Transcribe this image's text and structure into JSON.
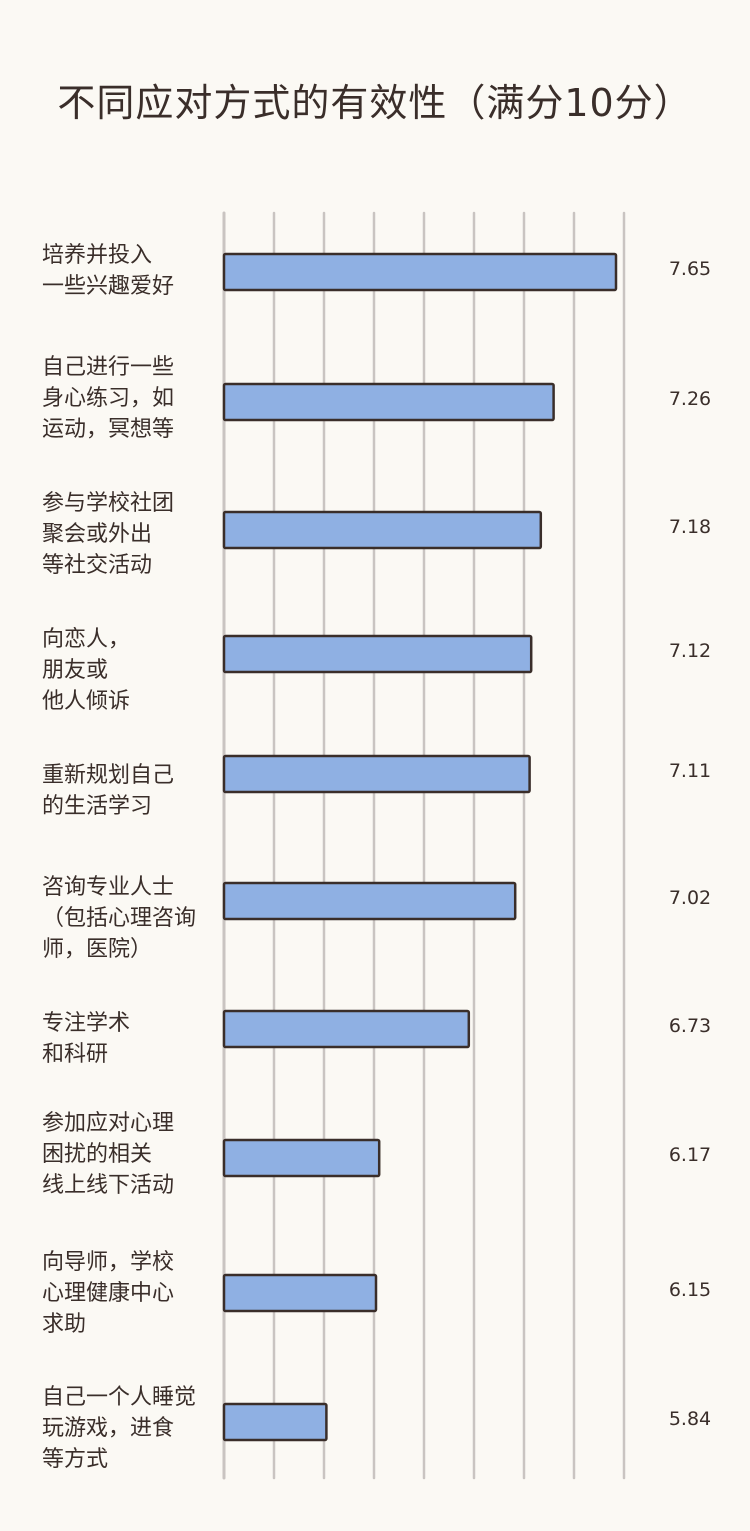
{
  "chart_data": {
    "type": "bar",
    "orientation": "horizontal",
    "title": "不同应对方式的有效性（满分10分）",
    "xlabel": "",
    "ylabel": "",
    "grid": true,
    "categories": [
      "培养并投入\n一些兴趣爱好",
      "自己进行一些\n身心练习，如\n运动，冥想等",
      "参与学校社团\n聚会或外出\n等社交活动",
      "向恋人，\n朋友或\n他人倾诉",
      "重新规划自己\n的生活学习",
      "咨询专业人士\n（包括心理咨询\n师，医院）",
      "专注学术\n和科研",
      "参加应对心理\n困扰的相关\n线上线下活动",
      "向导师，学校\n心理健康中心\n求助",
      "自己一个人睡觉\n玩游戏，进食\n等方式"
    ],
    "values": [
      7.65,
      7.26,
      7.18,
      7.12,
      7.11,
      7.02,
      6.73,
      6.17,
      6.15,
      5.84
    ],
    "value_labels": [
      "7.65",
      "7.26",
      "7.18",
      "7.12",
      "7.11",
      "7.02",
      "6.73",
      "6.17",
      "6.15",
      "5.84"
    ],
    "xlim": [
      5.2,
      8.0
    ],
    "colors": {
      "bar_fill": "#8fb0e3",
      "bar_stroke": "#3a2e2a",
      "grid": "#c9c4c1",
      "text": "#3a2e2a",
      "background": "#fbf9f4"
    }
  }
}
